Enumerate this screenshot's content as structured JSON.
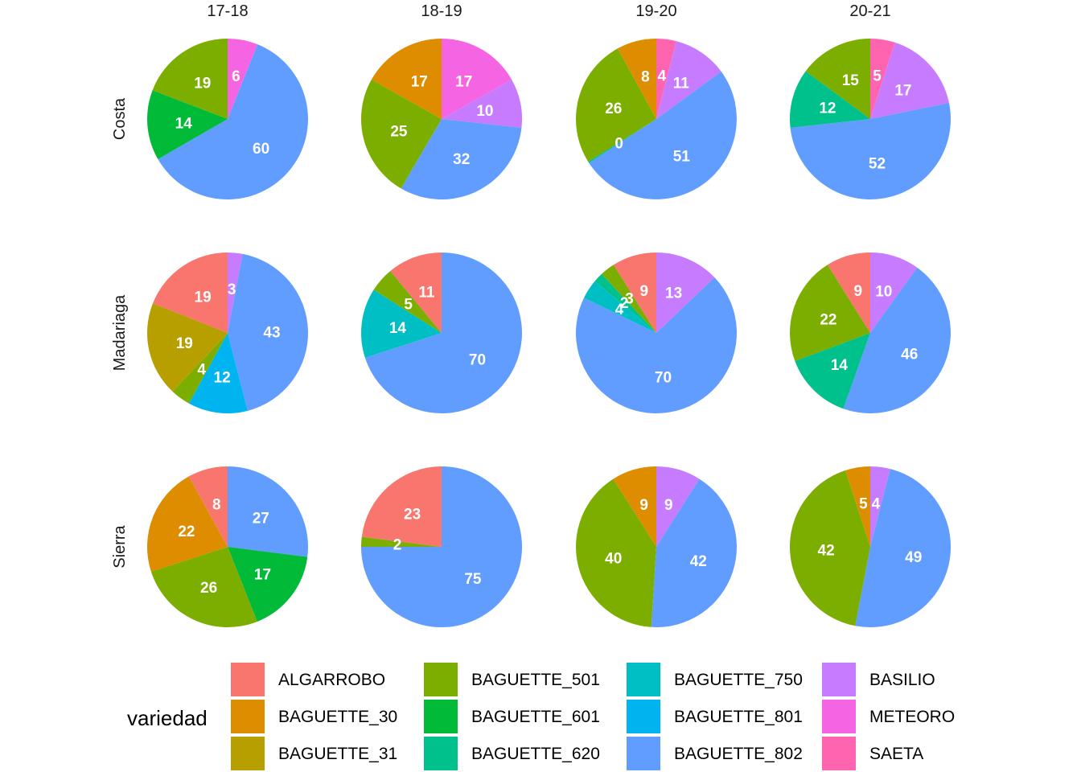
{
  "chart_data": {
    "type": "pie",
    "columns": [
      "17-18",
      "18-19",
      "19-20",
      "20-21"
    ],
    "rows": [
      "Costa",
      "Madariaga",
      "Sierra"
    ],
    "legend": {
      "title": "variedad",
      "entries": [
        {
          "name": "ALGARROBO",
          "color": "#F8766D"
        },
        {
          "name": "BAGUETTE_30",
          "color": "#DE8C00"
        },
        {
          "name": "BAGUETTE_31",
          "color": "#B79F00"
        },
        {
          "name": "BAGUETTE_501",
          "color": "#7CAE00"
        },
        {
          "name": "BAGUETTE_601",
          "color": "#00BA38"
        },
        {
          "name": "BAGUETTE_620",
          "color": "#00C08B"
        },
        {
          "name": "BAGUETTE_750",
          "color": "#00BFC4"
        },
        {
          "name": "BAGUETTE_801",
          "color": "#00B4F0"
        },
        {
          "name": "BAGUETTE_802",
          "color": "#619CFF"
        },
        {
          "name": "BASILIO",
          "color": "#C77CFF"
        },
        {
          "name": "METEORO",
          "color": "#F564E3"
        },
        {
          "name": "SAETA",
          "color": "#FF64B0"
        }
      ]
    },
    "panels": [
      {
        "row": "Costa",
        "col": "17-18",
        "slices": [
          {
            "variety": "METEORO",
            "value": 6,
            "label": "6"
          },
          {
            "variety": "BAGUETTE_802",
            "value": 60,
            "label": "60"
          },
          {
            "variety": "BAGUETTE_601",
            "value": 14,
            "label": "14"
          },
          {
            "variety": "BAGUETTE_501",
            "value": 19,
            "label": "19"
          }
        ]
      },
      {
        "row": "Costa",
        "col": "18-19",
        "slices": [
          {
            "variety": "METEORO",
            "value": 17,
            "label": "17"
          },
          {
            "variety": "BASILIO",
            "value": 10,
            "label": "10"
          },
          {
            "variety": "BAGUETTE_802",
            "value": 32,
            "label": "32"
          },
          {
            "variety": "BAGUETTE_501",
            "value": 25,
            "label": "25"
          },
          {
            "variety": "BAGUETTE_30",
            "value": 17,
            "label": "17"
          }
        ]
      },
      {
        "row": "Costa",
        "col": "19-20",
        "slices": [
          {
            "variety": "SAETA",
            "value": 4,
            "label": "4"
          },
          {
            "variety": "BASILIO",
            "value": 11,
            "label": "11"
          },
          {
            "variety": "BAGUETTE_802",
            "value": 51,
            "label": "51"
          },
          {
            "variety": "BAGUETTE_620",
            "value": 0.3,
            "label": "0"
          },
          {
            "variety": "BAGUETTE_501",
            "value": 26,
            "label": "26"
          },
          {
            "variety": "BAGUETTE_30",
            "value": 8,
            "label": "8"
          }
        ]
      },
      {
        "row": "Costa",
        "col": "20-21",
        "slices": [
          {
            "variety": "SAETA",
            "value": 5,
            "label": "5"
          },
          {
            "variety": "BASILIO",
            "value": 17,
            "label": "17"
          },
          {
            "variety": "BAGUETTE_802",
            "value": 52,
            "label": "52"
          },
          {
            "variety": "BAGUETTE_620",
            "value": 12,
            "label": "12"
          },
          {
            "variety": "BAGUETTE_501",
            "value": 15,
            "label": "15"
          }
        ]
      },
      {
        "row": "Madariaga",
        "col": "17-18",
        "slices": [
          {
            "variety": "BASILIO",
            "value": 3,
            "label": "3"
          },
          {
            "variety": "BAGUETTE_802",
            "value": 43,
            "label": "43"
          },
          {
            "variety": "BAGUETTE_801",
            "value": 12,
            "label": "12"
          },
          {
            "variety": "BAGUETTE_501",
            "value": 4,
            "label": "4"
          },
          {
            "variety": "BAGUETTE_31",
            "value": 19,
            "label": "19"
          },
          {
            "variety": "ALGARROBO",
            "value": 19,
            "label": "19"
          }
        ]
      },
      {
        "row": "Madariaga",
        "col": "18-19",
        "slices": [
          {
            "variety": "BAGUETTE_802",
            "value": 70,
            "label": "70"
          },
          {
            "variety": "BAGUETTE_750",
            "value": 14,
            "label": "14"
          },
          {
            "variety": "BAGUETTE_501",
            "value": 5,
            "label": "5"
          },
          {
            "variety": "ALGARROBO",
            "value": 11,
            "label": "11"
          }
        ]
      },
      {
        "row": "Madariaga",
        "col": "19-20",
        "slices": [
          {
            "variety": "BASILIO",
            "value": 13,
            "label": "13"
          },
          {
            "variety": "BAGUETTE_802",
            "value": 70,
            "label": "70"
          },
          {
            "variety": "BAGUETTE_750",
            "value": 4,
            "label": "4"
          },
          {
            "variety": "BAGUETTE_620",
            "value": 2,
            "label": "2"
          },
          {
            "variety": "BAGUETTE_501",
            "value": 3,
            "label": "3"
          },
          {
            "variety": "ALGARROBO",
            "value": 9,
            "label": "9"
          }
        ]
      },
      {
        "row": "Madariaga",
        "col": "20-21",
        "slices": [
          {
            "variety": "BASILIO",
            "value": 10,
            "label": "10"
          },
          {
            "variety": "BAGUETTE_802",
            "value": 46,
            "label": "46"
          },
          {
            "variety": "BAGUETTE_620",
            "value": 14,
            "label": "14"
          },
          {
            "variety": "BAGUETTE_501",
            "value": 22,
            "label": "22"
          },
          {
            "variety": "ALGARROBO",
            "value": 9,
            "label": "9"
          }
        ]
      },
      {
        "row": "Sierra",
        "col": "17-18",
        "slices": [
          {
            "variety": "BAGUETTE_802",
            "value": 27,
            "label": "27"
          },
          {
            "variety": "BAGUETTE_601",
            "value": 17,
            "label": "17"
          },
          {
            "variety": "BAGUETTE_501",
            "value": 26,
            "label": "26"
          },
          {
            "variety": "BAGUETTE_30",
            "value": 22,
            "label": "22"
          },
          {
            "variety": "ALGARROBO",
            "value": 8,
            "label": "8"
          }
        ]
      },
      {
        "row": "Sierra",
        "col": "18-19",
        "slices": [
          {
            "variety": "BAGUETTE_802",
            "value": 75,
            "label": "75"
          },
          {
            "variety": "BAGUETTE_501",
            "value": 2,
            "label": "2"
          },
          {
            "variety": "ALGARROBO",
            "value": 23,
            "label": "23"
          }
        ]
      },
      {
        "row": "Sierra",
        "col": "19-20",
        "slices": [
          {
            "variety": "BASILIO",
            "value": 9,
            "label": "9"
          },
          {
            "variety": "BAGUETTE_802",
            "value": 42,
            "label": "42"
          },
          {
            "variety": "BAGUETTE_501",
            "value": 40,
            "label": "40"
          },
          {
            "variety": "BAGUETTE_30",
            "value": 9,
            "label": "9"
          }
        ]
      },
      {
        "row": "Sierra",
        "col": "20-21",
        "slices": [
          {
            "variety": "BASILIO",
            "value": 4,
            "label": "4"
          },
          {
            "variety": "BAGUETTE_802",
            "value": 49,
            "label": "49"
          },
          {
            "variety": "BAGUETTE_501",
            "value": 42,
            "label": "42"
          },
          {
            "variety": "BAGUETTE_30",
            "value": 5,
            "label": "5"
          }
        ]
      }
    ]
  }
}
